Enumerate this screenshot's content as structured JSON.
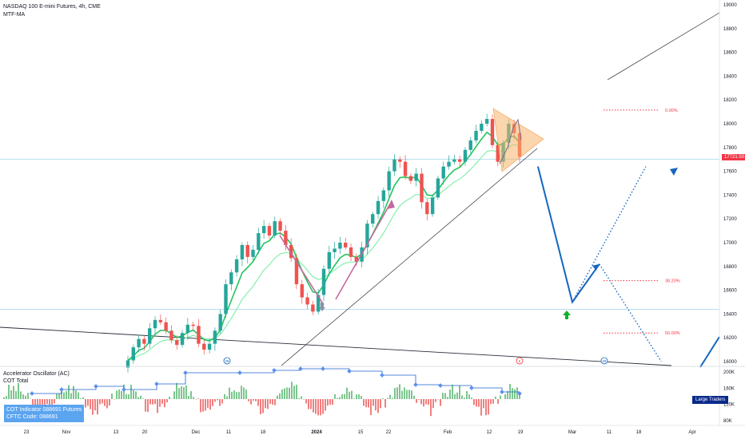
{
  "header": {
    "title": "NASDAQ 100 E-mini Futures, 4h, CME",
    "indicator": "MTF-MA"
  },
  "sub_panel": {
    "title": "Accelerator Oscillator (AC)",
    "subtitle": "COT Total",
    "cot_lines": [
      "COT Indicator 088691 Futures",
      "CFTC Code: 088691"
    ],
    "large_traders_label": "Large Traders"
  },
  "price_tag": "17721.50",
  "fib_labels": [
    "0.00%",
    "38.20%",
    "50.00%"
  ],
  "event_markers": [
    "29",
    "5",
    "28"
  ],
  "colors": {
    "up_candle": "#26a69a",
    "down_candle": "#ef5350",
    "ma_fast": "#22c55e",
    "ma_slow": "#86efac",
    "projection": "#1565c0",
    "fib": "#f23645",
    "triangle": "#f7b36a",
    "zigzag": "#c26a9c",
    "cot_line": "#1e62d0"
  },
  "chart_data": {
    "type": "candlestick",
    "yaxis": {
      "position": "right",
      "ticks": [
        19000,
        18800,
        18600,
        18400,
        18200,
        18000,
        17800,
        17600,
        17400,
        17200,
        17000,
        16800,
        16600,
        16400,
        16200,
        16000
      ],
      "range": [
        15980,
        19000
      ]
    },
    "sub_yaxis": {
      "ticks": [
        "200K",
        "160K",
        "120K",
        "80K"
      ],
      "range": [
        80,
        200
      ]
    },
    "xaxis": {
      "tick_labels": [
        "23",
        "Nov",
        "13",
        "20",
        "Dec",
        "11",
        "18",
        "2024",
        "15",
        "22",
        "Feb",
        "12",
        "19",
        "Mar",
        "11",
        "18",
        "Apr"
      ]
    },
    "horizontal_levels": [
      17700,
      16440
    ],
    "fib_levels": [
      {
        "label": "0.00%",
        "price": 18115
      },
      {
        "label": "38.20%",
        "price": 16680
      },
      {
        "label": "50.00%",
        "price": 16240
      }
    ],
    "projection_path": [
      {
        "date": "2024-02-22",
        "price": 17640
      },
      {
        "date": "2024-03-01",
        "price": 16500
      },
      {
        "date": "2024-03-08",
        "price": 16820
      }
    ],
    "projection_dotted": [
      {
        "from": {
          "date": "2024-03-08",
          "price": 16820
        },
        "to": {
          "date": "2024-03-24",
          "price": 16000
        }
      },
      {
        "from": {
          "date": "2024-03-01",
          "price": 16500
        },
        "to": {
          "date": "2024-03-20",
          "price": 17640
        }
      }
    ],
    "closes": [
      16010,
      16120,
      16190,
      16150,
      16280,
      16350,
      16330,
      16260,
      16180,
      16140,
      16240,
      16310,
      16300,
      16150,
      16100,
      16150,
      16260,
      16400,
      16650,
      16750,
      16860,
      16980,
      16880,
      16940,
      17080,
      17140,
      17060,
      17180,
      17100,
      16980,
      16870,
      16650,
      16540,
      16480,
      16420,
      16560,
      16780,
      16920,
      16950,
      17000,
      16960,
      16880,
      16840,
      16960,
      17160,
      17240,
      17350,
      17440,
      17600,
      17700,
      17680,
      17560,
      17520,
      17580,
      17340,
      17240,
      17380,
      17540,
      17640,
      17680,
      17700,
      17680,
      17780,
      17860,
      17940,
      18000,
      18040,
      17820,
      17680,
      17840,
      18000,
      17920,
      17721.5
    ]
  }
}
